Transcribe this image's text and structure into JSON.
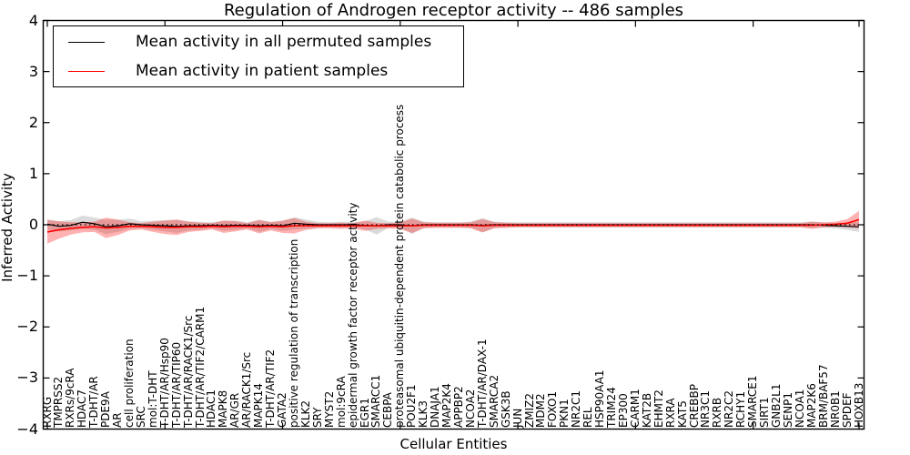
{
  "figure": {
    "background": "#ffffff"
  },
  "legend": {
    "items": [
      {
        "label": "Mean activity in all permuted samples",
        "color": "#000000"
      },
      {
        "label": "Mean activity in patient samples",
        "color": "#ff0000"
      }
    ]
  },
  "chart_data": {
    "type": "line",
    "title": "Regulation of Androgen receptor activity -- 486 samples",
    "xlabel": "Cellular Entities",
    "ylabel": "Inferred Activity",
    "ylim": [
      -4,
      4
    ],
    "yticks": [
      -4,
      -3,
      -2,
      -1,
      0,
      1,
      2,
      3,
      4
    ],
    "grid": false,
    "legend_position": "upper left",
    "zero_line": {
      "y": 0,
      "style": "dotted",
      "color": "#000000"
    },
    "categories": [
      "RXRG",
      "TMPRSS2",
      "RXRs/9cRA",
      "HDAC7",
      "T-DHT/AR",
      "PDE9A",
      "AR",
      "cell proliferation",
      "SRC",
      "mol:T-DHT",
      "T-DHT/AR/Hsp90",
      "T-DHT/AR/TIP60",
      "T-DHT/AR/RACK1/Src",
      "T-DHT/AR/TIF2/CARM1",
      "HDAC1",
      "MAPK8",
      "AR/GR",
      "AR/RACK1/Src",
      "MAPK14",
      "T-DHT/AR/TIF2",
      "GATA2",
      "positive regulation of transcription",
      "KLK2",
      "SRY",
      "MYST2",
      "mol:9cRA",
      "epidermal growth factor receptor activity",
      "EGR1",
      "SMARCC1",
      "CEBPA",
      "proteasomal ubiquitin-dependent protein catabolic process",
      "POU2F1",
      "KLK3",
      "DNAJA1",
      "MAP2K4",
      "APPBP2",
      "NCOA2",
      "T-DHT/AR/DAX-1",
      "SMARCA2",
      "GSK3B",
      "JUN",
      "ZMIZ2",
      "MDM2",
      "FOXO1",
      "PKN1",
      "NR2C1",
      "REL",
      "HSP90AA1",
      "TRIM24",
      "EP300",
      "CARM1",
      "KAT2B",
      "EHMT2",
      "RXRA",
      "KAT5",
      "CREBBP",
      "NR3C1",
      "RXRB",
      "NR2C2",
      "RCHY1",
      "SMARCE1",
      "SIRT1",
      "GNB2L1",
      "SENP1",
      "NCOA1",
      "MAP2K6",
      "BRM/BAF57",
      "NR0B1",
      "SPDEF",
      "HOXB13"
    ],
    "series": [
      {
        "name": "Mean activity in all permuted samples",
        "color": "#000000",
        "line_style": "solid",
        "values": [
          0.01,
          -0.03,
          -0.01,
          0.05,
          0.02,
          -0.04,
          -0.02,
          0.02,
          0.0,
          -0.01,
          -0.02,
          -0.03,
          -0.02,
          -0.02,
          -0.01,
          -0.02,
          -0.01,
          -0.01,
          -0.02,
          -0.01,
          -0.02,
          0.03,
          0.01,
          0.0,
          0.0,
          0.0,
          0.0,
          -0.01,
          -0.02,
          0.0,
          0.0,
          -0.02,
          0.0,
          0.0,
          0.0,
          0.0,
          0.0,
          -0.01,
          0.0,
          0.0,
          0.0,
          0.0,
          0.0,
          0.0,
          0.0,
          0.0,
          0.0,
          0.0,
          0.0,
          0.0,
          0.0,
          0.0,
          0.0,
          0.0,
          0.0,
          0.0,
          0.0,
          0.0,
          0.0,
          0.0,
          0.0,
          0.0,
          0.0,
          0.0,
          0.0,
          0.0,
          -0.01,
          -0.02,
          -0.03,
          -0.04
        ],
        "band_halfwidth": [
          0.1,
          0.1,
          0.1,
          0.13,
          0.12,
          0.14,
          0.12,
          0.1,
          0.07,
          0.09,
          0.11,
          0.13,
          0.09,
          0.08,
          0.06,
          0.1,
          0.09,
          0.06,
          0.12,
          0.07,
          0.1,
          0.12,
          0.09,
          0.06,
          0.05,
          0.06,
          0.05,
          0.08,
          0.17,
          0.06,
          0.06,
          0.16,
          0.06,
          0.05,
          0.05,
          0.05,
          0.06,
          0.14,
          0.06,
          0.05,
          0.05,
          0.05,
          0.05,
          0.05,
          0.05,
          0.05,
          0.05,
          0.05,
          0.05,
          0.05,
          0.05,
          0.05,
          0.05,
          0.05,
          0.05,
          0.05,
          0.05,
          0.05,
          0.05,
          0.05,
          0.05,
          0.05,
          0.05,
          0.05,
          0.05,
          0.06,
          0.05,
          0.05,
          0.07,
          0.1
        ],
        "band_color": "#999999",
        "band_opacity": 0.35
      },
      {
        "name": "Mean activity in patient samples",
        "color": "#ff0000",
        "line_style": "solid",
        "values": [
          -0.14,
          -0.1,
          -0.07,
          -0.05,
          -0.04,
          -0.06,
          -0.05,
          -0.03,
          -0.03,
          -0.04,
          -0.05,
          -0.05,
          -0.04,
          -0.04,
          -0.03,
          -0.04,
          -0.03,
          -0.03,
          -0.04,
          -0.03,
          -0.04,
          -0.02,
          -0.02,
          -0.02,
          -0.02,
          -0.02,
          -0.02,
          -0.02,
          -0.02,
          -0.02,
          -0.02,
          -0.02,
          -0.01,
          -0.01,
          -0.01,
          -0.01,
          -0.01,
          -0.02,
          -0.01,
          -0.01,
          -0.01,
          -0.01,
          -0.01,
          -0.01,
          -0.01,
          -0.01,
          -0.01,
          -0.01,
          -0.01,
          -0.01,
          -0.01,
          -0.01,
          -0.01,
          -0.01,
          -0.01,
          -0.01,
          -0.01,
          -0.01,
          -0.01,
          -0.01,
          -0.01,
          -0.01,
          -0.01,
          -0.01,
          -0.01,
          -0.01,
          0.0,
          0.01,
          0.03,
          0.1
        ],
        "band_halfwidth": [
          0.23,
          0.17,
          0.12,
          0.1,
          0.1,
          0.2,
          0.15,
          0.08,
          0.06,
          0.1,
          0.13,
          0.15,
          0.1,
          0.08,
          0.06,
          0.12,
          0.1,
          0.06,
          0.13,
          0.08,
          0.12,
          0.15,
          0.08,
          0.05,
          0.05,
          0.06,
          0.05,
          0.1,
          0.06,
          0.05,
          0.06,
          0.14,
          0.06,
          0.05,
          0.05,
          0.05,
          0.06,
          0.13,
          0.06,
          0.05,
          0.04,
          0.04,
          0.04,
          0.04,
          0.04,
          0.04,
          0.04,
          0.04,
          0.04,
          0.04,
          0.04,
          0.04,
          0.04,
          0.04,
          0.04,
          0.04,
          0.04,
          0.04,
          0.04,
          0.04,
          0.04,
          0.04,
          0.04,
          0.04,
          0.04,
          0.07,
          0.05,
          0.05,
          0.08,
          0.17
        ],
        "band_color": "#ff0000",
        "band_opacity": 0.3
      }
    ]
  }
}
